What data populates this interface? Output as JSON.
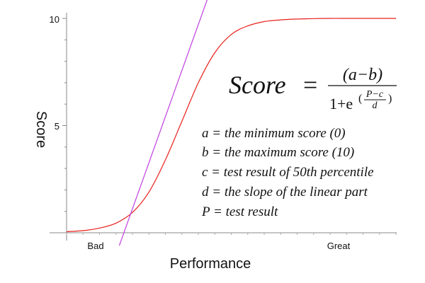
{
  "chart_data": {
    "type": "line",
    "title": "",
    "xlabel": "Performance",
    "ylabel": "Score",
    "x_tick_labels": [
      "Bad",
      "Great"
    ],
    "y_ticks": [
      10,
      5
    ],
    "y_tick_labels": [
      "10",
      "5"
    ],
    "xlim": [
      0,
      10
    ],
    "ylim": [
      0,
      10
    ],
    "grid": false,
    "legend": "none",
    "series": [
      {
        "color": "#e8201c",
        "x": [
          0,
          0.5,
          1,
          1.5,
          2,
          2.5,
          3,
          3.5,
          4,
          4.5,
          5,
          5.5,
          6,
          6.5,
          7,
          7.5,
          8,
          8.5,
          9,
          9.5,
          10
        ],
        "y": [
          0.05,
          0.1,
          0.22,
          0.45,
          0.95,
          1.9,
          3.4,
          5.2,
          7.0,
          8.4,
          9.25,
          9.65,
          9.85,
          9.93,
          9.97,
          9.99,
          10,
          10,
          10,
          10,
          10
        ]
      },
      {
        "color": "#c040e0",
        "x": [
          1.6,
          4.3
        ],
        "y": [
          -0.6,
          11
        ]
      }
    ],
    "annotations": {
      "formula": {
        "lhs": "Score",
        "equals": "=",
        "numerator": "(a−b)",
        "denom_base": "1+e",
        "exp_open": "(",
        "exp_num": "P−c",
        "exp_den": "d",
        "exp_close": ")"
      },
      "definitions": [
        "a = the minimum score (0)",
        "b = the maximum score (10)",
        "c = test result of 50th percentile",
        "d = the slope of the linear part",
        "P = test result"
      ]
    }
  }
}
